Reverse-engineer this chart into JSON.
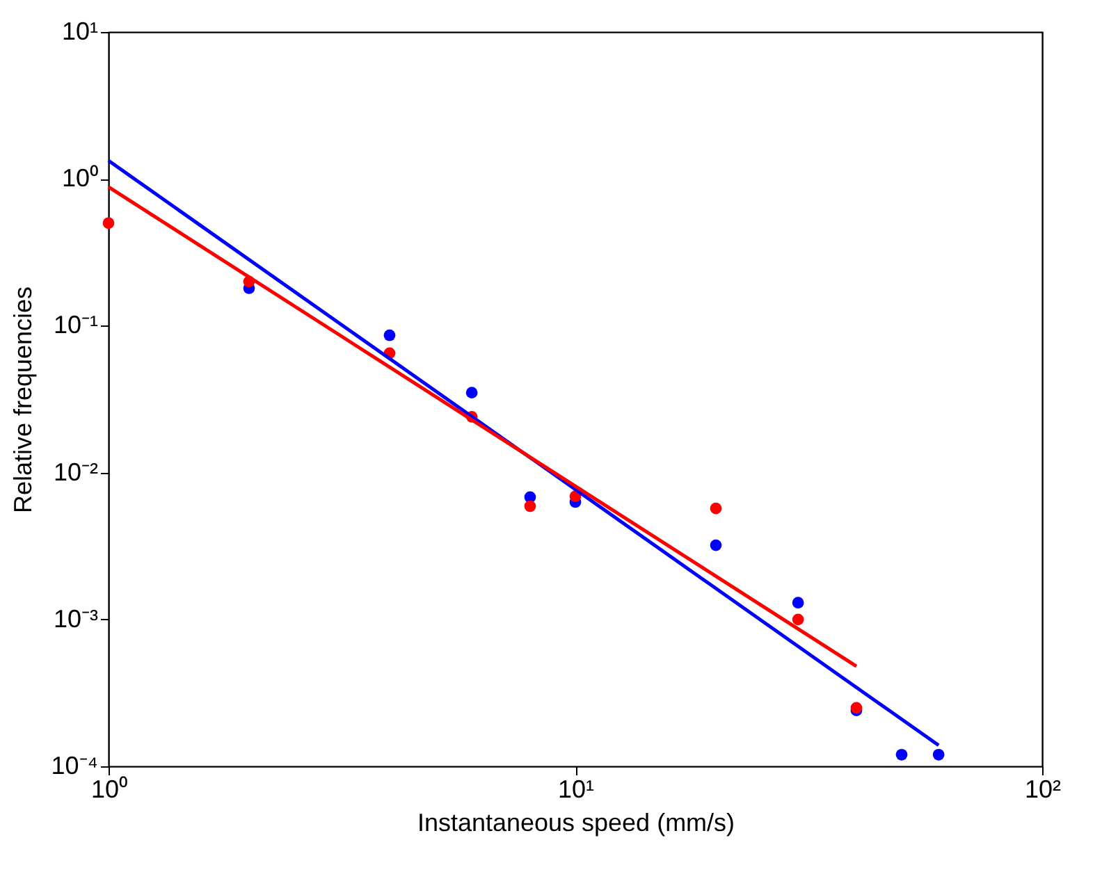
{
  "chart_data": {
    "type": "scatter",
    "xlabel": "Instantaneous speed (mm/s)",
    "ylabel": "Relative frequencies",
    "log": "xy",
    "grid": false,
    "legend": false,
    "xlim": [
      1,
      100
    ],
    "ylim": [
      0.0001,
      10
    ],
    "xticks": [
      {
        "value": 1,
        "label": "10⁰"
      },
      {
        "value": 10,
        "label": "10¹"
      },
      {
        "value": 100,
        "label": "10²"
      }
    ],
    "yticks": [
      {
        "value": 0.0001,
        "label": "10⁻⁴"
      },
      {
        "value": 0.001,
        "label": "10⁻³"
      },
      {
        "value": 0.01,
        "label": "10⁻²"
      },
      {
        "value": 0.1,
        "label": "10⁻¹"
      },
      {
        "value": 1,
        "label": "10⁰"
      },
      {
        "value": 10,
        "label": "10¹"
      }
    ],
    "series": [
      {
        "marker": "circle",
        "color": "#0000ff",
        "x": [
          2,
          4,
          6,
          8,
          10,
          20,
          30,
          40,
          50,
          60
        ],
        "values": [
          0.18,
          0.086,
          0.035,
          0.0068,
          0.0063,
          0.0032,
          0.0013,
          0.00024,
          0.00012,
          0.00012
        ]
      },
      {
        "marker": "circle",
        "color": "#ff0000",
        "x": [
          1,
          2,
          4,
          6,
          8,
          10,
          20,
          30,
          40
        ],
        "values": [
          0.5,
          0.2,
          0.065,
          0.024,
          0.0059,
          0.0069,
          0.0057,
          0.001,
          0.00025
        ]
      },
      {
        "type": "line",
        "color": "#0000ff",
        "x": [
          1,
          60
        ],
        "values": [
          1.33,
          0.000139
        ]
      },
      {
        "type": "line",
        "color": "#ff0000",
        "x": [
          1,
          40
        ],
        "values": [
          0.88,
          0.00048
        ]
      }
    ]
  }
}
